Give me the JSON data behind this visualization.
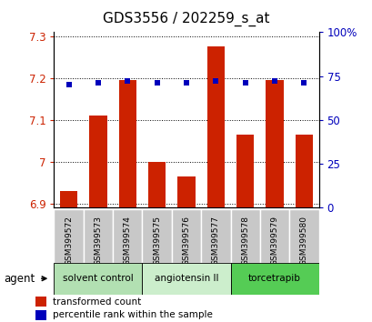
{
  "title": "GDS3556 / 202259_s_at",
  "samples": [
    "GSM399572",
    "GSM399573",
    "GSM399574",
    "GSM399575",
    "GSM399576",
    "GSM399577",
    "GSM399578",
    "GSM399579",
    "GSM399580"
  ],
  "transformed_counts": [
    6.93,
    7.11,
    7.195,
    7.0,
    6.965,
    7.275,
    7.065,
    7.195,
    7.065
  ],
  "percentile_ranks": [
    70,
    71,
    72,
    71,
    71,
    72,
    71,
    72,
    71
  ],
  "ylim_left": [
    6.89,
    7.31
  ],
  "ylim_right": [
    0,
    100
  ],
  "yticks_left": [
    6.9,
    7.0,
    7.1,
    7.2,
    7.3
  ],
  "yticks_right": [
    0,
    25,
    50,
    75,
    100
  ],
  "ytick_labels_right": [
    "0",
    "25",
    "50",
    "75",
    "100%"
  ],
  "groups": [
    {
      "label": "solvent control",
      "samples": [
        0,
        1,
        2
      ],
      "color": "#b2e0b2"
    },
    {
      "label": "angiotensin II",
      "samples": [
        3,
        4,
        5
      ],
      "color": "#cceecc"
    },
    {
      "label": "torcetrapib",
      "samples": [
        6,
        7,
        8
      ],
      "color": "#55cc55"
    }
  ],
  "bar_color": "#cc2200",
  "dot_color": "#0000bb",
  "baseline": 6.89,
  "xlabel_agent": "agent",
  "background_sample": "#c8c8c8",
  "title_fontsize": 11,
  "tick_fontsize": 8.5,
  "bar_width": 0.6
}
